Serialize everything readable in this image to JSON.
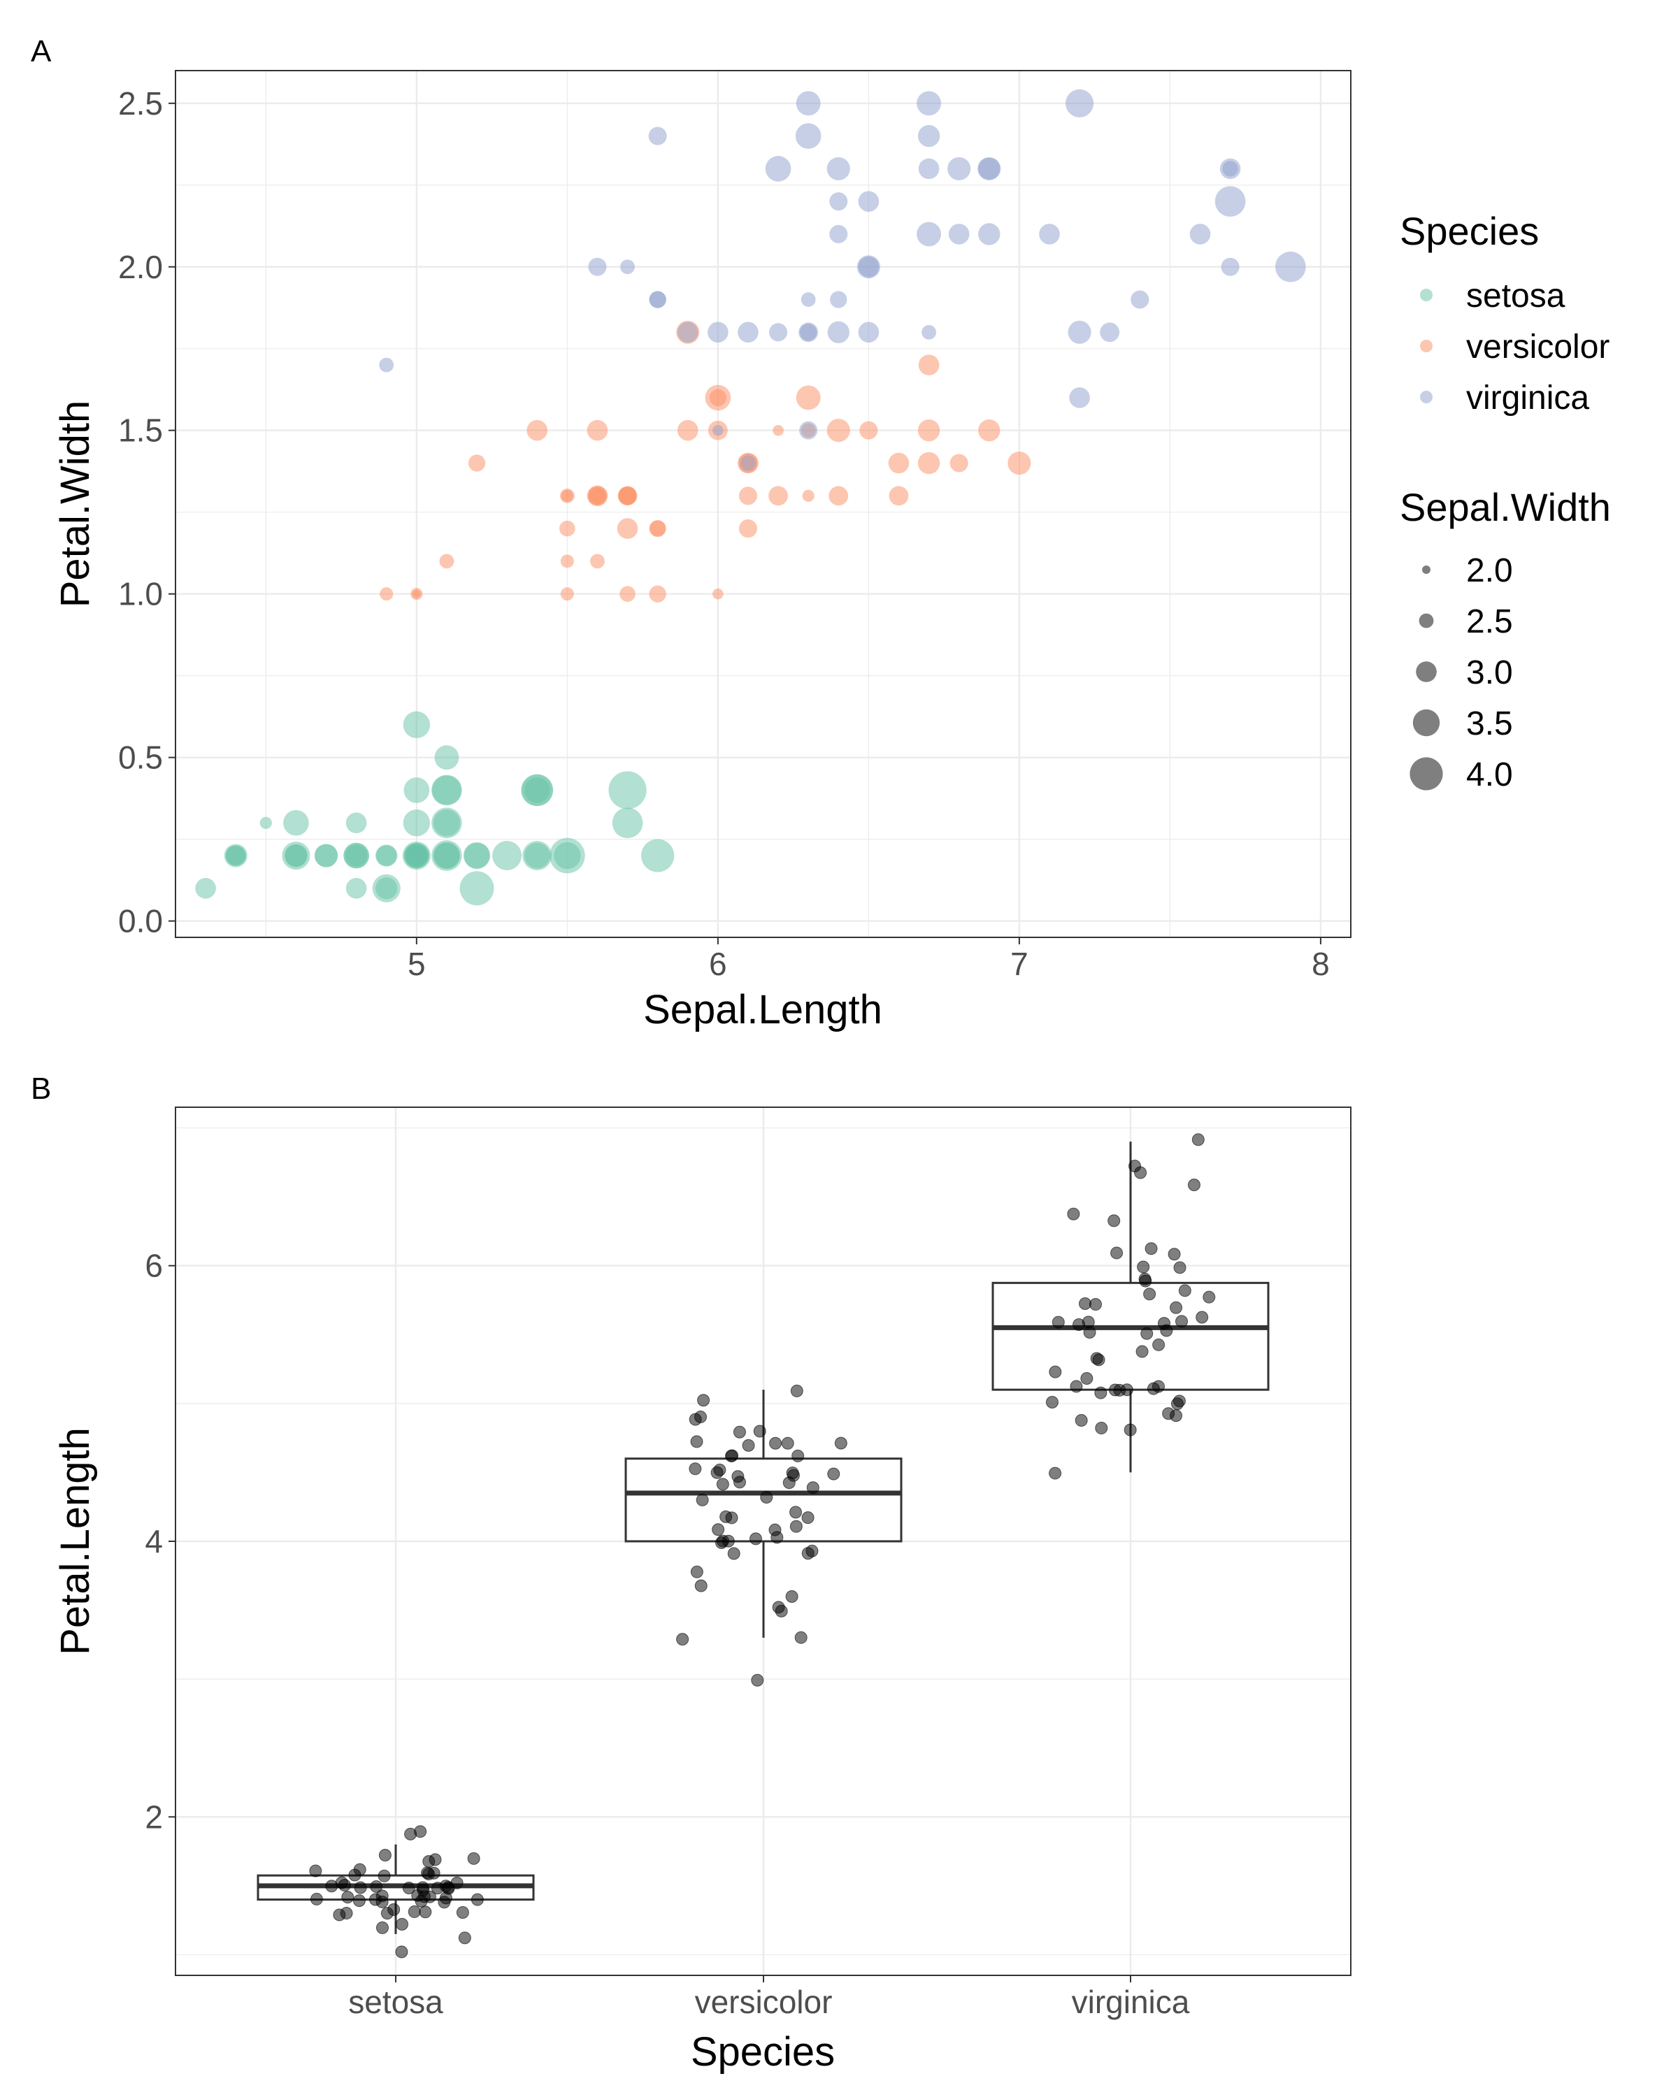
{
  "panels": [
    "A",
    "B"
  ],
  "colors": {
    "setosa": "#66c2a5",
    "versicolor": "#fc8d62",
    "virginica": "#8da0cb",
    "grid": "#ebebeb",
    "panel_border": "#333333",
    "tick_text": "#4d4d4d",
    "point_dark": "#000000"
  },
  "chart_data": [
    {
      "type": "scatter",
      "panel": "A",
      "xlabel": "Sepal.Length",
      "ylabel": "Petal.Width",
      "xlim": [
        4.2,
        8.1
      ],
      "ylim": [
        -0.05,
        2.6
      ],
      "x_ticks": [
        5,
        6,
        7,
        8
      ],
      "x_tick_labels": [
        "5",
        "6",
        "7",
        "8"
      ],
      "y_ticks": [
        0,
        0.5,
        1,
        1.5,
        2,
        2.5
      ],
      "y_tick_labels": [
        "0.0",
        "0.5",
        "1.0",
        "1.5",
        "2.0",
        "2.5"
      ],
      "grid": true,
      "point_alpha": 0.5,
      "legend": {
        "placement": "right",
        "color_title": "Species",
        "color_entries": [
          "setosa",
          "versicolor",
          "virginica"
        ],
        "size_title": "Sepal.Width",
        "size_entries": [
          2.0,
          2.5,
          3.0,
          3.5,
          4.0
        ],
        "size_labels": [
          "2.0",
          "2.5",
          "3.0",
          "3.5",
          "4.0"
        ]
      },
      "series": [
        {
          "name": "setosa",
          "points": [
            [
              5.1,
              0.2,
              3.5
            ],
            [
              4.9,
              0.2,
              3.0
            ],
            [
              4.7,
              0.2,
              3.2
            ],
            [
              4.6,
              0.2,
              3.1
            ],
            [
              5.0,
              0.2,
              3.6
            ],
            [
              5.4,
              0.4,
              3.9
            ],
            [
              4.6,
              0.3,
              3.4
            ],
            [
              5.0,
              0.2,
              3.4
            ],
            [
              4.4,
              0.2,
              2.9
            ],
            [
              4.9,
              0.1,
              3.1
            ],
            [
              5.4,
              0.2,
              3.7
            ],
            [
              4.8,
              0.2,
              3.4
            ],
            [
              4.8,
              0.1,
              3.0
            ],
            [
              4.3,
              0.1,
              3.0
            ],
            [
              5.8,
              0.2,
              4.0
            ],
            [
              5.7,
              0.4,
              4.4
            ],
            [
              5.4,
              0.4,
              3.9
            ],
            [
              5.1,
              0.3,
              3.5
            ],
            [
              5.7,
              0.3,
              3.8
            ],
            [
              5.1,
              0.3,
              3.8
            ],
            [
              5.4,
              0.2,
              3.4
            ],
            [
              5.1,
              0.4,
              3.7
            ],
            [
              4.6,
              0.2,
              3.6
            ],
            [
              5.1,
              0.5,
              3.3
            ],
            [
              4.8,
              0.2,
              3.4
            ],
            [
              5.0,
              0.2,
              3.0
            ],
            [
              5.0,
              0.4,
              3.4
            ],
            [
              5.2,
              0.2,
              3.5
            ],
            [
              5.2,
              0.2,
              3.4
            ],
            [
              4.7,
              0.2,
              3.2
            ],
            [
              4.8,
              0.2,
              3.1
            ],
            [
              5.4,
              0.4,
              3.4
            ],
            [
              5.2,
              0.1,
              4.1
            ],
            [
              5.5,
              0.2,
              4.2
            ],
            [
              4.9,
              0.2,
              3.1
            ],
            [
              5.0,
              0.2,
              3.2
            ],
            [
              5.5,
              0.2,
              3.5
            ],
            [
              4.9,
              0.1,
              3.6
            ],
            [
              4.4,
              0.2,
              3.0
            ],
            [
              5.1,
              0.2,
              3.4
            ],
            [
              5.0,
              0.3,
              3.5
            ],
            [
              4.5,
              0.3,
              2.3
            ],
            [
              4.4,
              0.2,
              3.2
            ],
            [
              5.0,
              0.6,
              3.5
            ],
            [
              5.1,
              0.4,
              3.8
            ],
            [
              4.8,
              0.3,
              3.0
            ],
            [
              5.1,
              0.2,
              3.8
            ],
            [
              4.6,
              0.2,
              3.2
            ],
            [
              5.3,
              0.2,
              3.7
            ],
            [
              5.0,
              0.2,
              3.3
            ]
          ]
        },
        {
          "name": "versicolor",
          "points": [
            [
              7.0,
              1.4,
              3.2
            ],
            [
              6.4,
              1.5,
              3.2
            ],
            [
              6.9,
              1.5,
              3.1
            ],
            [
              5.5,
              1.3,
              2.3
            ],
            [
              6.5,
              1.5,
              2.8
            ],
            [
              5.7,
              1.3,
              2.8
            ],
            [
              6.3,
              1.6,
              3.3
            ],
            [
              4.9,
              1.0,
              2.4
            ],
            [
              6.6,
              1.3,
              2.9
            ],
            [
              5.2,
              1.4,
              2.7
            ],
            [
              5.0,
              1.0,
              2.0
            ],
            [
              5.9,
              1.5,
              3.0
            ],
            [
              6.0,
              1.0,
              2.2
            ],
            [
              6.1,
              1.4,
              2.9
            ],
            [
              5.6,
              1.3,
              2.9
            ],
            [
              6.7,
              1.4,
              3.1
            ],
            [
              5.6,
              1.5,
              3.0
            ],
            [
              5.8,
              1.0,
              2.7
            ],
            [
              6.2,
              1.5,
              2.2
            ],
            [
              5.6,
              1.1,
              2.5
            ],
            [
              5.9,
              1.8,
              3.2
            ],
            [
              6.1,
              1.3,
              2.8
            ],
            [
              6.3,
              1.5,
              2.5
            ],
            [
              6.1,
              1.2,
              2.8
            ],
            [
              6.4,
              1.3,
              2.9
            ],
            [
              6.6,
              1.4,
              3.0
            ],
            [
              6.8,
              1.4,
              2.8
            ],
            [
              6.7,
              1.7,
              3.0
            ],
            [
              6.0,
              1.5,
              2.9
            ],
            [
              5.7,
              1.0,
              2.6
            ],
            [
              5.5,
              1.1,
              2.4
            ],
            [
              5.5,
              1.0,
              2.4
            ],
            [
              5.8,
              1.2,
              2.7
            ],
            [
              6.0,
              1.6,
              2.7
            ],
            [
              5.4,
              1.5,
              3.0
            ],
            [
              6.0,
              1.6,
              3.4
            ],
            [
              6.7,
              1.5,
              3.1
            ],
            [
              6.3,
              1.3,
              2.3
            ],
            [
              5.6,
              1.3,
              3.0
            ],
            [
              5.5,
              1.3,
              2.5
            ],
            [
              5.5,
              1.2,
              2.6
            ],
            [
              6.1,
              1.4,
              3.0
            ],
            [
              5.8,
              1.2,
              2.6
            ],
            [
              5.0,
              1.0,
              2.3
            ],
            [
              5.6,
              1.3,
              2.7
            ],
            [
              5.7,
              1.2,
              3.0
            ],
            [
              5.7,
              1.3,
              2.9
            ],
            [
              6.2,
              1.3,
              2.9
            ],
            [
              5.1,
              1.1,
              2.5
            ],
            [
              5.7,
              1.3,
              2.8
            ]
          ]
        },
        {
          "name": "virginica",
          "points": [
            [
              6.3,
              2.5,
              3.3
            ],
            [
              5.8,
              1.9,
              2.7
            ],
            [
              7.1,
              2.1,
              3.0
            ],
            [
              6.3,
              1.8,
              2.9
            ],
            [
              6.5,
              2.2,
              3.0
            ],
            [
              7.6,
              2.1,
              3.0
            ],
            [
              4.9,
              1.7,
              2.5
            ],
            [
              7.3,
              1.8,
              2.9
            ],
            [
              6.7,
              1.8,
              2.5
            ],
            [
              7.2,
              2.5,
              3.6
            ],
            [
              6.5,
              2.0,
              3.2
            ],
            [
              6.4,
              1.9,
              2.7
            ],
            [
              6.8,
              2.1,
              3.0
            ],
            [
              5.7,
              2.0,
              2.5
            ],
            [
              5.8,
              2.4,
              2.8
            ],
            [
              6.4,
              2.3,
              3.2
            ],
            [
              6.5,
              1.8,
              3.0
            ],
            [
              7.7,
              2.2,
              3.8
            ],
            [
              7.7,
              2.3,
              2.6
            ],
            [
              6.0,
              1.5,
              2.2
            ],
            [
              6.9,
              2.3,
              3.2
            ],
            [
              5.6,
              2.0,
              2.8
            ],
            [
              7.7,
              2.0,
              2.8
            ],
            [
              6.3,
              1.8,
              2.7
            ],
            [
              6.7,
              2.1,
              3.3
            ],
            [
              7.2,
              1.8,
              3.2
            ],
            [
              6.2,
              1.8,
              2.8
            ],
            [
              6.1,
              1.8,
              3.0
            ],
            [
              6.4,
              2.1,
              2.8
            ],
            [
              7.2,
              1.6,
              3.0
            ],
            [
              7.4,
              1.9,
              2.8
            ],
            [
              7.9,
              2.0,
              3.8
            ],
            [
              6.4,
              2.2,
              2.8
            ],
            [
              6.3,
              1.5,
              2.8
            ],
            [
              6.1,
              1.4,
              2.6
            ],
            [
              7.7,
              2.3,
              3.0
            ],
            [
              6.3,
              2.4,
              3.4
            ],
            [
              6.4,
              1.8,
              3.1
            ],
            [
              6.0,
              1.8,
              3.0
            ],
            [
              6.9,
              2.1,
              3.1
            ],
            [
              6.7,
              2.4,
              3.1
            ],
            [
              6.9,
              2.3,
              3.1
            ],
            [
              5.8,
              1.9,
              2.7
            ],
            [
              6.8,
              2.3,
              3.2
            ],
            [
              6.7,
              2.5,
              3.3
            ],
            [
              6.7,
              2.3,
              3.0
            ],
            [
              6.3,
              1.9,
              2.5
            ],
            [
              6.5,
              2.0,
              3.0
            ],
            [
              6.2,
              2.3,
              3.4
            ],
            [
              5.9,
              1.8,
              3.0
            ]
          ]
        }
      ]
    },
    {
      "type": "box",
      "panel": "B",
      "xlabel": "Species",
      "ylabel": "Petal.Length",
      "categories": [
        "setosa",
        "versicolor",
        "virginica"
      ],
      "ylim": [
        0.85,
        7.15
      ],
      "y_ticks": [
        2,
        4,
        6
      ],
      "y_tick_labels": [
        "2",
        "4",
        "6"
      ],
      "grid": true,
      "boxes": [
        {
          "q1": 1.4,
          "median": 1.5,
          "q3": 1.575,
          "whisker_low": 1.15,
          "whisker_high": 1.8
        },
        {
          "q1": 4.0,
          "median": 4.35,
          "q3": 4.6,
          "whisker_low": 3.3,
          "whisker_high": 5.1
        },
        {
          "q1": 5.1,
          "median": 5.55,
          "q3": 5.875,
          "whisker_low": 4.5,
          "whisker_high": 6.9
        }
      ],
      "jitter_points": [
        [
          1.4,
          1.4,
          1.3,
          1.5,
          1.4,
          1.7,
          1.4,
          1.5,
          1.4,
          1.5,
          1.5,
          1.6,
          1.4,
          1.1,
          1.2,
          1.5,
          1.3,
          1.4,
          1.7,
          1.5,
          1.7,
          1.5,
          1.0,
          1.7,
          1.9,
          1.6,
          1.6,
          1.5,
          1.4,
          1.6,
          1.6,
          1.5,
          1.5,
          1.4,
          1.5,
          1.2,
          1.3,
          1.4,
          1.3,
          1.5,
          1.3,
          1.3,
          1.3,
          1.6,
          1.9,
          1.4,
          1.6,
          1.4,
          1.5,
          1.4
        ],
        [
          4.7,
          4.5,
          4.9,
          4.0,
          4.6,
          4.5,
          4.7,
          3.3,
          4.6,
          3.9,
          3.5,
          4.2,
          4.0,
          4.7,
          3.6,
          4.4,
          4.5,
          4.1,
          4.5,
          3.9,
          4.8,
          4.0,
          4.9,
          4.7,
          4.3,
          4.4,
          4.8,
          5.0,
          4.5,
          3.5,
          3.8,
          3.7,
          3.9,
          5.1,
          4.5,
          4.5,
          4.7,
          4.4,
          4.1,
          4.0,
          4.4,
          4.6,
          4.0,
          3.3,
          4.2,
          4.2,
          4.2,
          4.3,
          3.0,
          4.1
        ],
        [
          6.0,
          5.1,
          5.9,
          5.6,
          5.8,
          6.6,
          4.5,
          6.3,
          5.8,
          6.1,
          5.1,
          5.3,
          5.5,
          5.0,
          5.1,
          5.3,
          5.5,
          6.7,
          6.9,
          5.0,
          5.7,
          4.9,
          6.7,
          4.9,
          5.7,
          6.0,
          4.8,
          4.9,
          5.6,
          5.8,
          6.1,
          6.4,
          5.6,
          5.1,
          5.6,
          6.1,
          5.6,
          5.5,
          4.8,
          5.4,
          5.6,
          5.1,
          5.1,
          5.9,
          5.7,
          5.2,
          5.0,
          5.2,
          5.4,
          5.1
        ]
      ]
    }
  ]
}
